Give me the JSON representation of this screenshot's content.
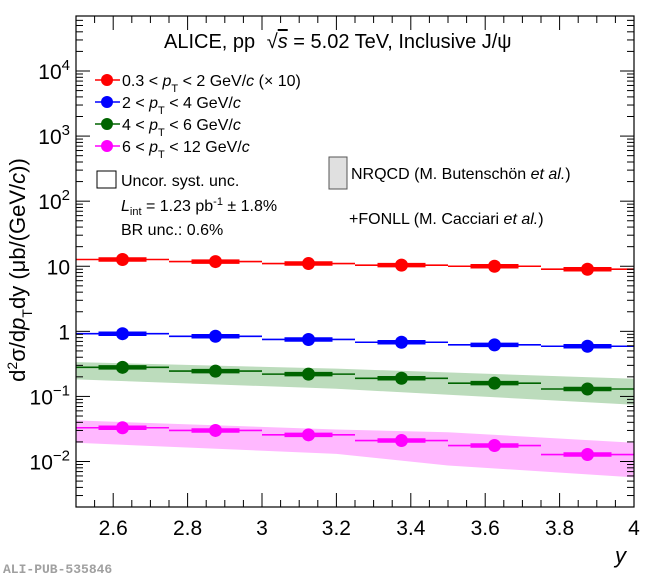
{
  "chart_data": {
    "type": "scatter",
    "title": "ALICE, pp √s = 5.02 TeV, Inclusive J/ψ",
    "title_parts": {
      "experiment": "ALICE, pp",
      "sqrt": "√",
      "s": "s",
      "energy": " = 5.02 TeV, Inclusive J/ψ"
    },
    "xlabel": "y",
    "ylabel": "d²σ/dp_T dy (μb/(GeV/c))",
    "ylabel_parts": {
      "d2": "d",
      "sup2": "2",
      "sigma": "σ/d",
      "p": "p",
      "T": "T",
      "dy": "dy (μb/(GeV/",
      "c": "c",
      "close": "))"
    },
    "xlim": [
      2.5,
      4.0
    ],
    "ylim": [
      0.002,
      70000
    ],
    "yscale": "log",
    "grid": false,
    "x_ticks": [
      2.6,
      2.8,
      3.0,
      3.2,
      3.4,
      3.6,
      3.8,
      4.0
    ],
    "x_tick_labels": [
      "2.6",
      "2.8",
      "3",
      "3.2",
      "3.4",
      "3.6",
      "3.8",
      "4"
    ],
    "y_ticks": [
      {
        "value": 10000,
        "base": "10",
        "exp": "4"
      },
      {
        "value": 1000,
        "base": "10",
        "exp": "3"
      },
      {
        "value": 100,
        "base": "10",
        "exp": "2"
      },
      {
        "value": 10,
        "base": "10",
        "exp": ""
      },
      {
        "value": 1,
        "base": "1",
        "exp": ""
      },
      {
        "value": 0.1,
        "base": "10",
        "exp": "−1"
      },
      {
        "value": 0.01,
        "base": "10",
        "exp": "−2"
      }
    ],
    "bin_edges": [
      2.5,
      2.75,
      3.0,
      3.25,
      3.5,
      3.75,
      4.0
    ],
    "x": [
      2.625,
      2.875,
      3.125,
      3.375,
      3.625,
      3.875
    ],
    "series": [
      {
        "name": "0.3 < pT < 2 GeV/c (× 10)",
        "legend": {
          "pre": "0.3 < ",
          "p": "p",
          "T": "T",
          "post": " < 2 GeV/",
          "c": "c",
          "extra": " (× 10)"
        },
        "color": "#ff0000",
        "values": [
          12.7,
          11.8,
          11.0,
          10.4,
          10.0,
          9.0
        ]
      },
      {
        "name": "2 < pT < 4 GeV/c",
        "legend": {
          "pre": "2 < ",
          "p": "p",
          "T": "T",
          "post": " < 4 GeV/",
          "c": "c",
          "extra": ""
        },
        "color": "#0000ff",
        "values": [
          0.92,
          0.84,
          0.75,
          0.68,
          0.62,
          0.59
        ]
      },
      {
        "name": "4 < pT < 6 GeV/c",
        "legend": {
          "pre": "4 < ",
          "p": "p",
          "T": "T",
          "post": " < 6 GeV/",
          "c": "c",
          "extra": ""
        },
        "color": "#006400",
        "values": [
          0.28,
          0.245,
          0.22,
          0.19,
          0.16,
          0.13
        ],
        "band_color": "#bcdcbc",
        "band": {
          "x": [
            2.5,
            3.2,
            4.0
          ],
          "low": [
            0.183,
            0.131,
            0.0745
          ],
          "high": [
            0.337,
            0.267,
            0.187
          ]
        }
      },
      {
        "name": "6 < pT < 12 GeV/c",
        "legend": {
          "pre": "6 < ",
          "p": "p",
          "T": "T",
          "post": " < 12 GeV/",
          "c": "c",
          "extra": ""
        },
        "color": "#ff00ff",
        "values": [
          0.033,
          0.03,
          0.0257,
          0.021,
          0.0176,
          0.0128
        ],
        "band_color": "#ffb8ff",
        "band": {
          "x": [
            2.5,
            3.2,
            3.5,
            4.0
          ],
          "low": [
            0.0194,
            0.0131,
            0.0087,
            0.0057
          ],
          "high": [
            0.0428,
            0.031,
            0.0282,
            0.0194
          ]
        }
      }
    ],
    "legend": {
      "placement": "top-left",
      "syst_label": "Uncor. syst. unc.",
      "lumi": {
        "L": "L",
        "sub": "int",
        "text": " = 1.23 pb",
        "sup": "-1",
        "rest": " ± 1.8%"
      },
      "br": "BR unc.: 0.6%"
    },
    "model_legend": {
      "placement": "top-right",
      "nrqcd": {
        "main": "NRQCD (M. Butenschön ",
        "ital": "et al.",
        "close": ")"
      },
      "fonll": {
        "main": "+FONLL (M. Cacciari ",
        "ital": "et al.",
        "close": ")"
      },
      "box_color": "#e0e0e0"
    }
  },
  "footer": {
    "pub_id": "ALI-PUB-535846"
  }
}
